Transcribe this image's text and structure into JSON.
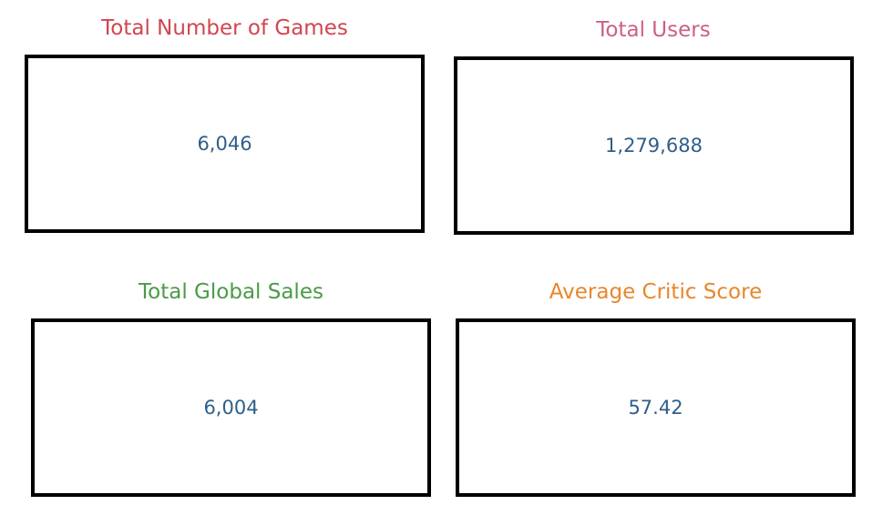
{
  "chart_data": {
    "type": "table",
    "cards": [
      {
        "title": "Total Number of Games",
        "value": "6,046",
        "title_color": "#d1454f"
      },
      {
        "title": "Total Users",
        "value": "1,279,688",
        "title_color": "#cf5d8a"
      },
      {
        "title": "Total Global Sales",
        "value": "6,004",
        "title_color": "#4b9a46"
      },
      {
        "title": "Average Critic Score",
        "value": "57.42",
        "title_color": "#e8862b"
      }
    ],
    "value_color": "#2e5f8a"
  }
}
